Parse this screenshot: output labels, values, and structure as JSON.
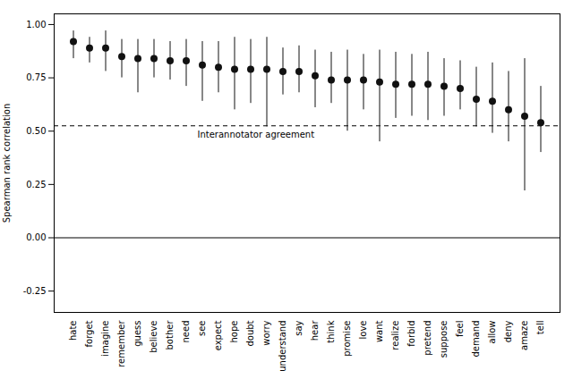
{
  "chart_data": {
    "type": "scatter",
    "categories": [
      "hate",
      "forget",
      "imagine",
      "remember",
      "guess",
      "believe",
      "bother",
      "need",
      "see",
      "expect",
      "hope",
      "doubt",
      "worry",
      "understand",
      "say",
      "hear",
      "think",
      "promise",
      "love",
      "want",
      "realize",
      "forbid",
      "pretend",
      "suppose",
      "feel",
      "demand",
      "allow",
      "deny",
      "amaze",
      "tell"
    ],
    "values": [
      0.92,
      0.89,
      0.89,
      0.85,
      0.84,
      0.84,
      0.83,
      0.83,
      0.81,
      0.8,
      0.79,
      0.79,
      0.79,
      0.78,
      0.78,
      0.76,
      0.74,
      0.74,
      0.74,
      0.73,
      0.72,
      0.72,
      0.72,
      0.71,
      0.7,
      0.65,
      0.64,
      0.6,
      0.57,
      0.54
    ],
    "lower": [
      0.84,
      0.82,
      0.78,
      0.75,
      0.68,
      0.75,
      0.74,
      0.71,
      0.64,
      0.68,
      0.6,
      0.63,
      0.52,
      0.67,
      0.68,
      0.61,
      0.63,
      0.5,
      0.6,
      0.45,
      0.56,
      0.57,
      0.55,
      0.57,
      0.6,
      0.52,
      0.49,
      0.45,
      0.22,
      0.4
    ],
    "upper": [
      0.97,
      0.94,
      0.97,
      0.93,
      0.93,
      0.93,
      0.92,
      0.93,
      0.92,
      0.92,
      0.94,
      0.93,
      0.94,
      0.89,
      0.9,
      0.88,
      0.87,
      0.88,
      0.86,
      0.88,
      0.87,
      0.86,
      0.87,
      0.84,
      0.83,
      0.8,
      0.82,
      0.78,
      0.84,
      0.71
    ],
    "color": "#111111",
    "ylabel": "Spearman rank correlation",
    "ylim": [
      -0.35,
      1.05
    ],
    "yticks": [
      -0.25,
      {
        "value": 0,
        "label": "0.00"
      },
      0.25,
      {
        "value": 0.5,
        "label": "0.50"
      },
      0.75,
      {
        "value": 1,
        "label": "1.00"
      }
    ],
    "hlines": [
      {
        "y": 0.525,
        "label": "Interannotator agreement",
        "line_style": "dashed"
      },
      {
        "y": 0,
        "line_style": "solid"
      }
    ],
    "grid": false
  }
}
